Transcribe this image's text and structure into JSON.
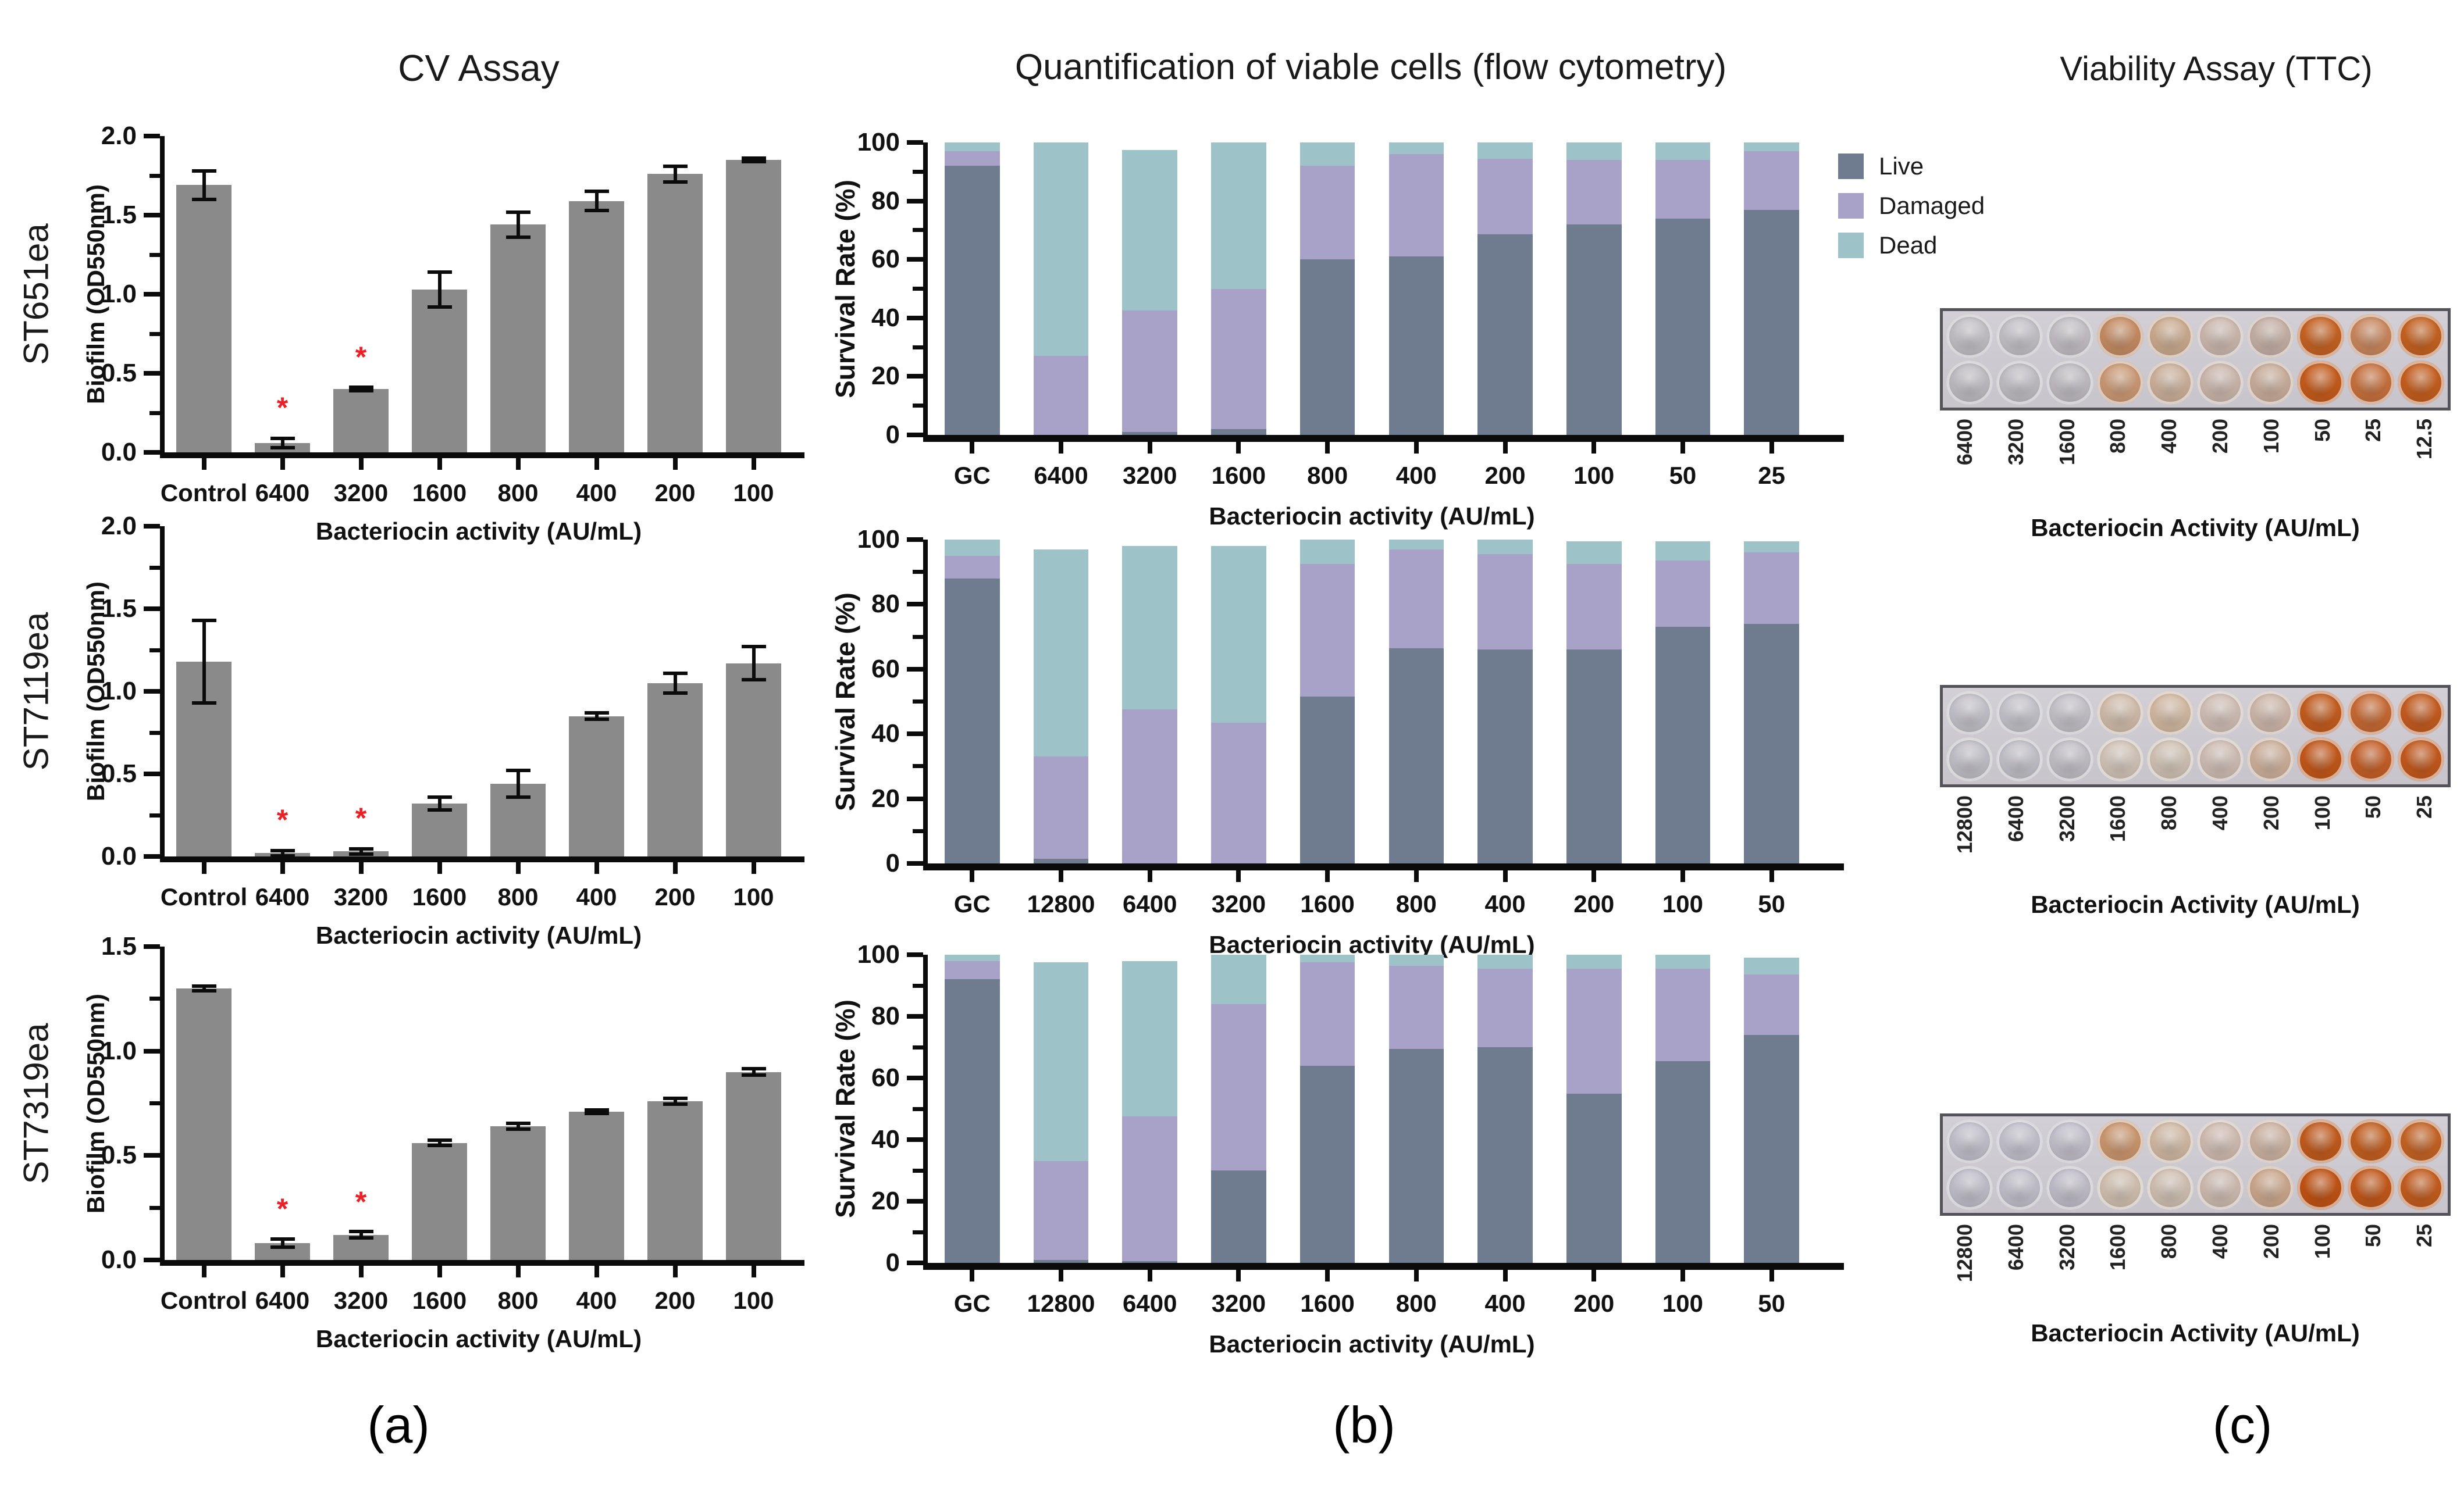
{
  "figure": {
    "titles": {
      "a": "CV Assay",
      "b": "Quantification of viable cells (flow cytometry)",
      "c": "Viability Assay (TTC)"
    },
    "panel_labels": [
      "(a)",
      "(b)",
      "(c)"
    ],
    "strains": [
      "ST651ea",
      "ST7119ea",
      "ST7319ea"
    ],
    "legend": {
      "items": [
        {
          "label": "Live",
          "color": "#6F7C90"
        },
        {
          "label": "Damaged",
          "color": "#A8A2C9"
        },
        {
          "label": "Dead",
          "color": "#9DC3C9"
        }
      ]
    },
    "colors": {
      "cv_bar": "#8A8A8A",
      "axis": "#0B0B0B",
      "significance_star": "#EC2027",
      "well_plate_border": "#55535A",
      "well_plate_bg": "#CCCAD0"
    }
  },
  "chart_data": [
    {
      "id": "cv-0",
      "type": "bar",
      "strain": "ST651ea",
      "ylabel": "Biofilm (OD550nm)",
      "xlabel": "Bacteriocin activity (AU/mL)",
      "ylim": [
        0,
        2.0
      ],
      "yticks": [
        0,
        0.5,
        1.0,
        1.5,
        2.0
      ],
      "ytick_labels": [
        "0.0",
        "0.5",
        "1.0",
        "1.5",
        "2.0"
      ],
      "yminor": [
        0.25,
        0.75,
        1.25,
        1.75
      ],
      "categories": [
        "Control",
        "6400",
        "3200",
        "1600",
        "800",
        "400",
        "200",
        "100"
      ],
      "values": [
        1.69,
        0.06,
        0.4,
        1.03,
        1.44,
        1.59,
        1.76,
        1.85
      ],
      "errors": [
        0.09,
        0.03,
        0.01,
        0.11,
        0.08,
        0.06,
        0.05,
        0.01
      ],
      "significant": [
        false,
        true,
        true,
        false,
        false,
        false,
        false,
        false
      ]
    },
    {
      "id": "cv-1",
      "type": "bar",
      "strain": "ST7119ea",
      "ylabel": "Biofilm (OD550nm)",
      "xlabel": "Bacteriocin activity (AU/mL)",
      "ylim": [
        0,
        2.0
      ],
      "yticks": [
        0,
        0.5,
        1.0,
        1.5,
        2.0
      ],
      "ytick_labels": [
        "0.0",
        "0.5",
        "1.0",
        "1.5",
        "2.0"
      ],
      "yminor": [
        0.25,
        0.75,
        1.25,
        1.75
      ],
      "categories": [
        "Control",
        "6400",
        "3200",
        "1600",
        "800",
        "400",
        "200",
        "100"
      ],
      "values": [
        1.18,
        0.02,
        0.03,
        0.32,
        0.44,
        0.85,
        1.05,
        1.17
      ],
      "errors": [
        0.25,
        0.015,
        0.015,
        0.04,
        0.08,
        0.02,
        0.06,
        0.1
      ],
      "significant": [
        false,
        true,
        true,
        false,
        false,
        false,
        false,
        false
      ]
    },
    {
      "id": "cv-2",
      "type": "bar",
      "strain": "ST7319ea",
      "ylabel": "Biofilm (OD550nm)",
      "xlabel": "Bacteriocin activity (AU/mL)",
      "ylim": [
        0,
        1.5
      ],
      "yticks": [
        0,
        0.5,
        1.0,
        1.5
      ],
      "ytick_labels": [
        "0.0",
        "0.5",
        "1.0",
        "1.5"
      ],
      "yminor": [
        0.25,
        0.75,
        1.25
      ],
      "categories": [
        "Control",
        "6400",
        "3200",
        "1600",
        "800",
        "400",
        "200",
        "100"
      ],
      "values": [
        1.3,
        0.08,
        0.12,
        0.56,
        0.64,
        0.71,
        0.76,
        0.9
      ],
      "errors": [
        0.012,
        0.02,
        0.015,
        0.012,
        0.015,
        0.008,
        0.015,
        0.015
      ],
      "significant": [
        false,
        true,
        true,
        false,
        false,
        false,
        false,
        false
      ]
    },
    {
      "id": "fc-0",
      "type": "stacked-bar",
      "strain": "ST651ea",
      "ylabel": "Survival Rate (%)",
      "xlabel": "Bacteriocin activity (AU/mL)",
      "ylim": [
        0,
        100
      ],
      "yticks": [
        0,
        20,
        40,
        60,
        80,
        100
      ],
      "ytick_labels": [
        "0",
        "20",
        "40",
        "60",
        "80",
        "100"
      ],
      "yminor": [
        10,
        30,
        50,
        70,
        90
      ],
      "categories": [
        "GC",
        "6400",
        "3200",
        "1600",
        "800",
        "400",
        "200",
        "100",
        "50",
        "25"
      ],
      "series": [
        {
          "name": "Live",
          "color": "#6F7C90",
          "values": [
            92,
            0,
            1,
            2,
            60,
            61,
            68.5,
            72,
            74,
            77
          ]
        },
        {
          "name": "Damaged",
          "color": "#A8A2C9",
          "values": [
            5,
            27,
            41.5,
            48,
            32,
            35,
            26,
            22,
            20,
            20
          ]
        },
        {
          "name": "Dead",
          "color": "#9DC3C9",
          "values": [
            3,
            73,
            55,
            50,
            8,
            4,
            5.5,
            6,
            6,
            3
          ]
        }
      ]
    },
    {
      "id": "fc-1",
      "type": "stacked-bar",
      "strain": "ST7119ea",
      "ylabel": "Survival Rate (%)",
      "xlabel": "Bacteriocin activity (AU/mL)",
      "ylim": [
        0,
        100
      ],
      "yticks": [
        0,
        20,
        40,
        60,
        80,
        100
      ],
      "ytick_labels": [
        "0",
        "20",
        "40",
        "60",
        "80",
        "100"
      ],
      "yminor": [
        10,
        30,
        50,
        70,
        90
      ],
      "categories": [
        "GC",
        "12800",
        "6400",
        "3200",
        "1600",
        "800",
        "400",
        "200",
        "100",
        "50"
      ],
      "series": [
        {
          "name": "Live",
          "color": "#6F7C90",
          "values": [
            88,
            1.5,
            0,
            0,
            51.5,
            66.5,
            66,
            66,
            73,
            74
          ]
        },
        {
          "name": "Damaged",
          "color": "#A8A2C9",
          "values": [
            7,
            31.5,
            47.5,
            43.5,
            41,
            30.5,
            29.5,
            26.5,
            20.5,
            22
          ]
        },
        {
          "name": "Dead",
          "color": "#9DC3C9",
          "values": [
            5,
            64,
            50.5,
            54.5,
            7.5,
            3,
            4.5,
            7,
            6,
            3.5
          ]
        }
      ]
    },
    {
      "id": "fc-2",
      "type": "stacked-bar",
      "strain": "ST7319ea",
      "ylabel": "Survival Rate (%)",
      "xlabel": "Bacteriocin activity (AU/mL)",
      "ylim": [
        0,
        100
      ],
      "yticks": [
        0,
        20,
        40,
        60,
        80,
        100
      ],
      "ytick_labels": [
        "0",
        "20",
        "40",
        "60",
        "80",
        "100"
      ],
      "yminor": [
        10,
        30,
        50,
        70,
        90
      ],
      "categories": [
        "GC",
        "12800",
        "6400",
        "3200",
        "1600",
        "800",
        "400",
        "200",
        "100",
        "50"
      ],
      "series": [
        {
          "name": "Live",
          "color": "#6F7C90",
          "values": [
            92,
            1,
            0.5,
            30,
            64,
            69.5,
            70,
            55,
            65.5,
            74
          ]
        },
        {
          "name": "Damaged",
          "color": "#A8A2C9",
          "values": [
            6,
            32,
            47,
            54,
            33.5,
            27,
            25.5,
            40.5,
            30,
            19.5
          ]
        },
        {
          "name": "Dead",
          "color": "#9DC3C9",
          "values": [
            2,
            64.5,
            50.5,
            16,
            2.5,
            3.5,
            4.5,
            4.5,
            4.5,
            5.5
          ]
        }
      ]
    },
    {
      "id": "ttc-0",
      "type": "well-plate-photo",
      "strain": "ST651ea",
      "xlabel": "Bacteriocin Activity (AU/mL)",
      "categories": [
        "6400",
        "3200",
        "1600",
        "800",
        "400",
        "200",
        "100",
        "50",
        "25",
        "12.5"
      ],
      "well_colors_top": [
        "#c6c3c9",
        "#c7c4ca",
        "#c6c2c8",
        "#c98f66",
        "#cfae92",
        "#d0bcb2",
        "#c9b3a9",
        "#c96524",
        "#cd8a60",
        "#c96523"
      ],
      "well_colors_bottom": [
        "#c3c0c6",
        "#c4c1c7",
        "#c3bfc5",
        "#cf9d79",
        "#d0b49e",
        "#cfbab0",
        "#cdb19e",
        "#c95e1d",
        "#cb7440",
        "#c96120"
      ]
    },
    {
      "id": "ttc-1",
      "type": "well-plate-photo",
      "strain": "ST7119ea",
      "xlabel": "Bacteriocin Activity (AU/mL)",
      "categories": [
        "12800",
        "6400",
        "3200",
        "1600",
        "800",
        "400",
        "200",
        "100",
        "50",
        "25"
      ],
      "well_colors_top": [
        "#c7c5cd",
        "#c8c6ce",
        "#c7c4cc",
        "#d5c0ae",
        "#d6bda6",
        "#d4c2b9",
        "#d2bbae",
        "#c75f20",
        "#cb6c35",
        "#c85e22"
      ],
      "well_colors_bottom": [
        "#c5c3cb",
        "#c6c4cc",
        "#c5c2ca",
        "#d6c8bc",
        "#d5c6b8",
        "#d3c1b8",
        "#d1b49f",
        "#c65a1b",
        "#c96229",
        "#c75b1e"
      ]
    },
    {
      "id": "ttc-2",
      "type": "well-plate-photo",
      "strain": "ST7319ea",
      "xlabel": "Bacteriocin Activity (AU/mL)",
      "categories": [
        "12800",
        "6400",
        "3200",
        "1600",
        "800",
        "400",
        "200",
        "100",
        "50",
        "25"
      ],
      "well_colors_top": [
        "#c6c4cf",
        "#c7c5d0",
        "#c6c3ce",
        "#cf9a72",
        "#d5bda8",
        "#d4c0b5",
        "#d1b7a6",
        "#c55d1e",
        "#c76222",
        "#c86627"
      ],
      "well_colors_bottom": [
        "#c4c2cd",
        "#c5c3ce",
        "#c4c1cc",
        "#d5c4b4",
        "#d4c4b6",
        "#d2bfb4",
        "#cfab90",
        "#c45515",
        "#c65a1b",
        "#c75f20"
      ]
    }
  ]
}
